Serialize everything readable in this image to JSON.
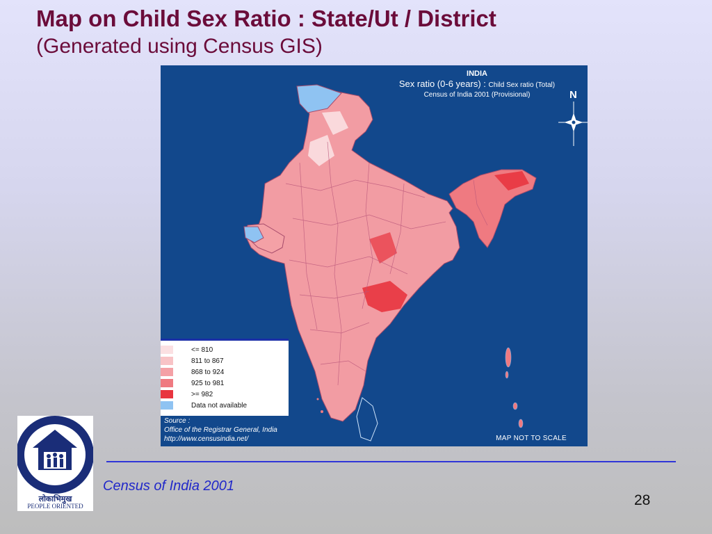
{
  "slide": {
    "title": "Map on Child Sex Ratio : State/Ut / District",
    "subtitle": "(Generated using Census GIS)",
    "footer": "Census of India 2001",
    "page_number": "28"
  },
  "map": {
    "heading": "INDIA",
    "subheading_main": "Sex ratio (0-6 years) : ",
    "subheading_small": "Child Sex ratio (Total)",
    "subheading_sub": "Census of India 2001 (Provisional)",
    "north_label": "N",
    "scale_note": "MAP NOT TO SCALE",
    "background_color": "#12488c",
    "legend": [
      {
        "label": "<= 810",
        "color": "#fbe0e2"
      },
      {
        "label": "811 to 867",
        "color": "#f8c3c6"
      },
      {
        "label": "868 to 924",
        "color": "#f4a1a6"
      },
      {
        "label": "925 to 981",
        "color": "#ef7a81"
      },
      {
        "label": ">= 982",
        "color": "#e8353f"
      },
      {
        "label": "Data not available",
        "color": "#8fc3f2"
      }
    ],
    "source_label": "Source :",
    "source_line1": "Office of the Registrar General, India",
    "source_line2": "http://www.censusindia.net/"
  },
  "logo": {
    "caption_hindi": "लोकाभिमुख",
    "caption_english": "PEOPLE ORIENTED"
  }
}
